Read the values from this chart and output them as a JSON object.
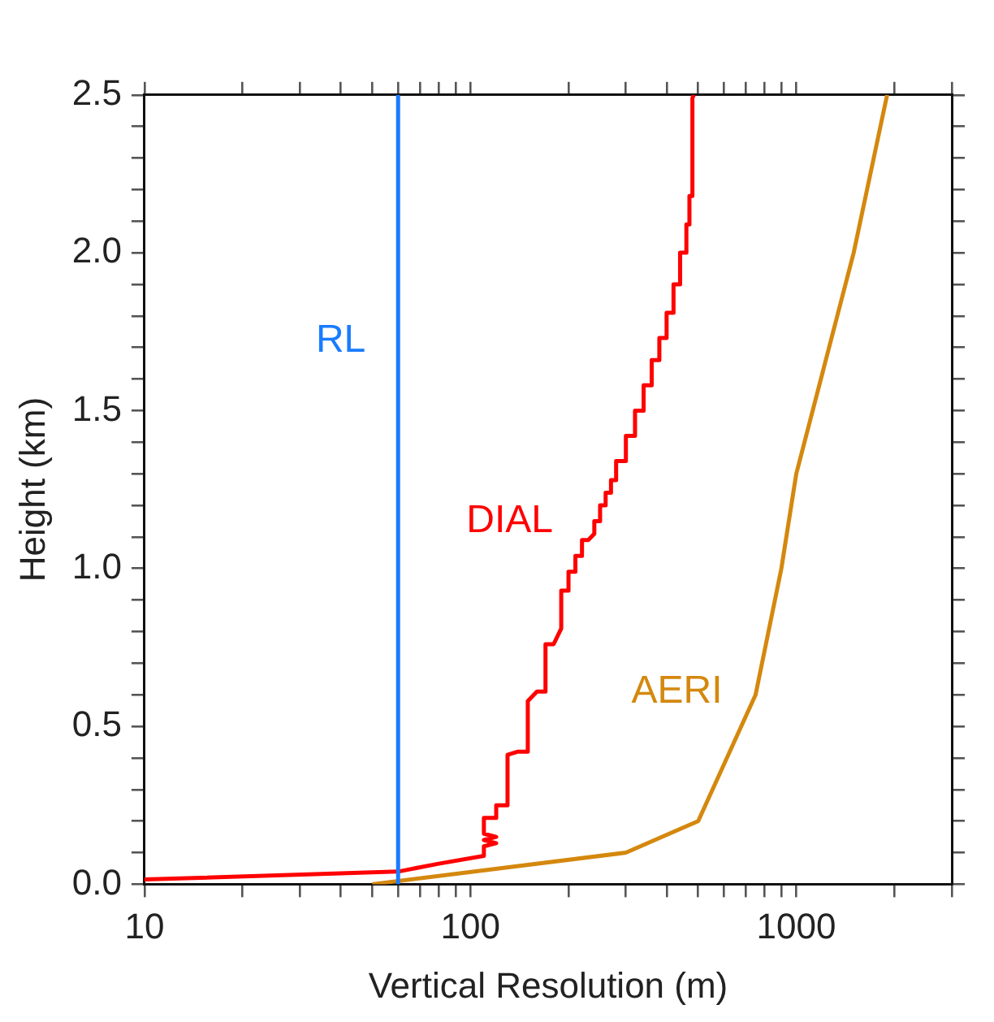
{
  "chart_data": {
    "type": "line",
    "xlabel": "Vertical Resolution (m)",
    "ylabel": "Height (km)",
    "log": "x",
    "grid": false,
    "legend": false,
    "marker": "none",
    "line_style": "solid",
    "xlim": [
      10,
      3000
    ],
    "ylim": [
      0,
      2.5
    ],
    "xticks": [
      10,
      {
        "value": 20,
        "label": null
      },
      {
        "value": 30,
        "label": null
      },
      {
        "value": 40,
        "label": null
      },
      {
        "value": 50,
        "label": null
      },
      {
        "value": 60,
        "label": null
      },
      {
        "value": 70,
        "label": null
      },
      {
        "value": 80,
        "label": null
      },
      {
        "value": 90,
        "label": null
      },
      100,
      {
        "value": 200,
        "label": null
      },
      {
        "value": 300,
        "label": null
      },
      {
        "value": 400,
        "label": null
      },
      {
        "value": 500,
        "label": null
      },
      {
        "value": 600,
        "label": null
      },
      {
        "value": 700,
        "label": null
      },
      {
        "value": 800,
        "label": null
      },
      {
        "value": 900,
        "label": null
      },
      1000,
      {
        "value": 2000,
        "label": null
      },
      {
        "value": 3000,
        "label": null
      }
    ],
    "yticks": [
      {
        "value": 0,
        "label": "0.0"
      },
      {
        "value": 0.1,
        "label": null
      },
      {
        "value": 0.2,
        "label": null
      },
      {
        "value": 0.3,
        "label": null
      },
      {
        "value": 0.4,
        "label": null
      },
      {
        "value": 0.5,
        "label": "0.5"
      },
      {
        "value": 0.6,
        "label": null
      },
      {
        "value": 0.7,
        "label": null
      },
      {
        "value": 0.8,
        "label": null
      },
      {
        "value": 0.9,
        "label": null
      },
      {
        "value": 1.0,
        "label": "1.0"
      },
      {
        "value": 1.1,
        "label": null
      },
      {
        "value": 1.2,
        "label": null
      },
      {
        "value": 1.3,
        "label": null
      },
      {
        "value": 1.4,
        "label": null
      },
      {
        "value": 1.5,
        "label": "1.5"
      },
      {
        "value": 1.6,
        "label": null
      },
      {
        "value": 1.7,
        "label": null
      },
      {
        "value": 1.8,
        "label": null
      },
      {
        "value": 1.9,
        "label": null
      },
      {
        "value": 2.0,
        "label": "2.0"
      },
      {
        "value": 2.1,
        "label": null
      },
      {
        "value": 2.2,
        "label": null
      },
      {
        "value": 2.3,
        "label": null
      },
      {
        "value": 2.4,
        "label": null
      },
      {
        "value": 2.5,
        "label": "2.5"
      }
    ],
    "series": [
      {
        "name": "RL",
        "color": "#1a7cff",
        "x": [
          60,
          60
        ],
        "values": [
          0,
          2.5
        ]
      },
      {
        "name": "DIAL",
        "color": "#ff0000",
        "x": [
          10,
          10,
          60,
          80,
          110,
          110,
          120,
          110,
          120,
          110,
          110,
          120,
          120,
          130,
          130,
          140,
          150,
          150,
          160,
          170,
          170,
          180,
          190,
          190,
          200,
          200,
          210,
          210,
          220,
          220,
          230,
          240,
          240,
          250,
          250,
          260,
          260,
          270,
          270,
          280,
          280,
          300,
          300,
          320,
          320,
          340,
          340,
          360,
          360,
          380,
          380,
          400,
          400,
          420,
          420,
          440,
          440,
          460,
          460,
          470,
          470,
          480,
          480,
          485
        ],
        "values": [
          0.01,
          0.015,
          0.04,
          0.065,
          0.09,
          0.12,
          0.13,
          0.14,
          0.15,
          0.16,
          0.21,
          0.21,
          0.25,
          0.25,
          0.41,
          0.42,
          0.42,
          0.58,
          0.61,
          0.61,
          0.76,
          0.76,
          0.81,
          0.93,
          0.93,
          0.99,
          0.99,
          1.04,
          1.04,
          1.09,
          1.09,
          1.11,
          1.15,
          1.15,
          1.2,
          1.2,
          1.24,
          1.24,
          1.28,
          1.28,
          1.34,
          1.34,
          1.42,
          1.42,
          1.5,
          1.5,
          1.58,
          1.58,
          1.66,
          1.66,
          1.73,
          1.73,
          1.81,
          1.81,
          1.9,
          1.9,
          2.0,
          2.0,
          2.09,
          2.09,
          2.18,
          2.18,
          2.49,
          2.5
        ]
      },
      {
        "name": "AERI",
        "color": "#d4880e",
        "x": [
          50,
          300,
          500,
          750,
          900,
          1000,
          1500,
          1900
        ],
        "values": [
          0,
          0.1,
          0.2,
          0.6,
          1.0,
          1.3,
          2.0,
          2.5
        ]
      }
    ]
  }
}
